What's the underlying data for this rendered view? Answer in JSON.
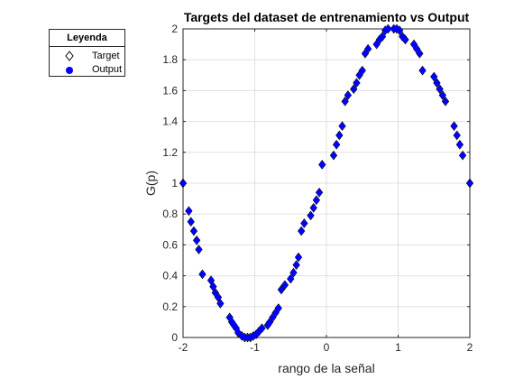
{
  "colors": {
    "marker_fill": "#0000ff",
    "marker_edge": "#000000",
    "grid": "#e0e0e0",
    "axis": "#262626"
  },
  "chart_data": {
    "type": "scatter",
    "title": "Targets del dataset de entrenamiento vs Output",
    "xlabel": "rango de la señal",
    "ylabel": "G(p)",
    "xlim": [
      -2,
      2
    ],
    "ylim": [
      0,
      2
    ],
    "xticks": [
      "-2",
      "-1",
      "0",
      "1",
      "2"
    ],
    "yticks": [
      "0",
      "0.2",
      "0.4",
      "0.6",
      "0.8",
      "1",
      "1.2",
      "1.4",
      "1.6",
      "1.8",
      "2"
    ],
    "grid": true,
    "legend": {
      "title": "Leyenda",
      "placement": "outside-left",
      "entries": [
        "Target",
        "Output"
      ]
    },
    "series": [
      {
        "name": "Target",
        "marker": "diamond-open"
      },
      {
        "name": "Output",
        "marker": "circle-filled"
      }
    ],
    "x": [
      -2.0,
      -1.92,
      -1.89,
      -1.85,
      -1.81,
      -1.78,
      -1.73,
      -1.61,
      -1.58,
      -1.55,
      -1.51,
      -1.48,
      -1.35,
      -1.32,
      -1.29,
      -1.26,
      -1.23,
      -1.18,
      -1.14,
      -1.1,
      -1.06,
      -1.02,
      -0.98,
      -0.94,
      -0.9,
      -0.82,
      -0.79,
      -0.75,
      -0.71,
      -0.67,
      -0.63,
      -0.58,
      -0.5,
      -0.46,
      -0.42,
      -0.39,
      -0.35,
      -0.31,
      -0.22,
      -0.18,
      -0.14,
      -0.1,
      -0.06,
      0.1,
      0.14,
      0.18,
      0.22,
      0.26,
      0.3,
      0.38,
      0.42,
      0.46,
      0.5,
      0.54,
      0.58,
      0.7,
      0.74,
      0.78,
      0.82,
      0.86,
      0.94,
      0.98,
      1.02,
      1.06,
      1.1,
      1.22,
      1.26,
      1.3,
      1.34,
      1.5,
      1.54,
      1.58,
      1.62,
      1.66,
      1.78,
      1.82,
      1.86,
      1.9,
      2.0
    ],
    "y": [
      1.0,
      0.82,
      0.75,
      0.69,
      0.63,
      0.57,
      0.41,
      0.37,
      0.33,
      0.29,
      0.26,
      0.22,
      0.13,
      0.1,
      0.08,
      0.06,
      0.03,
      0.01,
      0.0,
      0.0,
      0.0,
      0.01,
      0.02,
      0.04,
      0.06,
      0.08,
      0.1,
      0.13,
      0.16,
      0.19,
      0.31,
      0.34,
      0.38,
      0.42,
      0.47,
      0.52,
      0.69,
      0.74,
      0.79,
      0.84,
      0.89,
      0.94,
      1.12,
      1.18,
      1.25,
      1.31,
      1.37,
      1.53,
      1.57,
      1.61,
      1.65,
      1.7,
      1.73,
      1.84,
      1.87,
      1.9,
      1.93,
      1.95,
      1.99,
      2.0,
      2.0,
      2.0,
      1.99,
      1.95,
      1.93,
      1.9,
      1.87,
      1.84,
      1.73,
      1.69,
      1.65,
      1.61,
      1.57,
      1.53,
      1.37,
      1.31,
      1.25,
      1.18,
      1.0
    ]
  }
}
